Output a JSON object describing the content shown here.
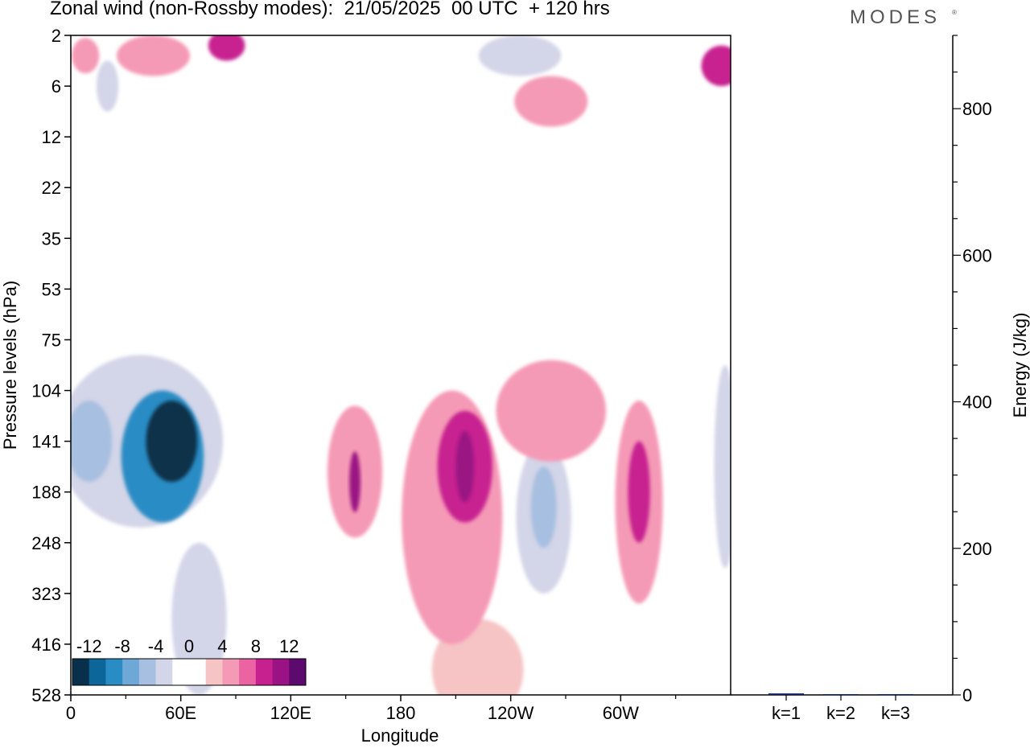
{
  "title": "Zonal wind (non-Rossby modes):  21/05/2025  00 UTC  + 120 hrs",
  "brand": "MODES",
  "brand_mark": "®",
  "chart_data": [
    {
      "type": "heatmap",
      "title": "Zonal wind (non-Rossby modes):  21/05/2025  00 UTC  + 120 hrs",
      "xlabel": "Longitude",
      "ylabel": "Pressure levels (hPa)",
      "x_ticks": [
        "0",
        "60E",
        "120E",
        "180",
        "120W",
        "60W"
      ],
      "x_tick_deg": [
        0,
        60,
        120,
        180,
        240,
        300
      ],
      "xlim": [
        0,
        360
      ],
      "y_ticks": [
        "2",
        "6",
        "12",
        "22",
        "35",
        "53",
        "75",
        "104",
        "141",
        "188",
        "248",
        "323",
        "416",
        "528"
      ],
      "colorbar": {
        "labels": [
          "-12",
          "-8",
          "-4",
          "0",
          "4",
          "8",
          "12"
        ],
        "colors": [
          "#08304a",
          "#0d6699",
          "#2a8cc4",
          "#6ea8d6",
          "#a7bfe0",
          "#d3d5e8",
          "#ffffff",
          "#ffffff",
          "#f6c4c5",
          "#f59ab6",
          "#ec63a3",
          "#c72190",
          "#9a1283",
          "#5c0a6e"
        ]
      },
      "cells": [
        {
          "lon": 55,
          "level_index": 8.0,
          "value": -14,
          "w": 28,
          "h": 1.6
        },
        {
          "lon": 50,
          "level_index": 8.3,
          "value": -10,
          "w": 45,
          "h": 2.6
        },
        {
          "lon": 10,
          "level_index": 8.0,
          "value": -6,
          "w": 25,
          "h": 1.6
        },
        {
          "lon": 38,
          "level_index": 8.0,
          "value": -4,
          "w": 90,
          "h": 3.4
        },
        {
          "lon": 70,
          "level_index": 11.5,
          "value": -4,
          "w": 30,
          "h": 3.0
        },
        {
          "lon": 258,
          "level_index": 9.3,
          "value": -6,
          "w": 14,
          "h": 1.6
        },
        {
          "lon": 258,
          "level_index": 9.5,
          "value": -3,
          "w": 30,
          "h": 3.0
        },
        {
          "lon": 357,
          "level_index": 8.5,
          "value": -3,
          "w": 12,
          "h": 4.0
        },
        {
          "lon": 245,
          "level_index": 0.4,
          "value": -4,
          "w": 45,
          "h": 0.8
        },
        {
          "lon": 20,
          "level_index": 1.0,
          "value": -3,
          "w": 12,
          "h": 1.0
        },
        {
          "lon": 155,
          "level_index": 8.6,
          "value": 5,
          "w": 30,
          "h": 2.6
        },
        {
          "lon": 155,
          "level_index": 8.8,
          "value": 10,
          "w": 6,
          "h": 1.2
        },
        {
          "lon": 215,
          "level_index": 8.5,
          "value": 8,
          "w": 30,
          "h": 2.2
        },
        {
          "lon": 215,
          "level_index": 8.5,
          "value": 10,
          "w": 10,
          "h": 1.4
        },
        {
          "lon": 208,
          "level_index": 9.5,
          "value": 5,
          "w": 55,
          "h": 5.0
        },
        {
          "lon": 310,
          "level_index": 9.0,
          "value": 8,
          "w": 12,
          "h": 2.0
        },
        {
          "lon": 310,
          "level_index": 9.2,
          "value": 4,
          "w": 26,
          "h": 4.0
        },
        {
          "lon": 262,
          "level_index": 7.4,
          "value": 4,
          "w": 60,
          "h": 2.0
        },
        {
          "lon": 222,
          "level_index": 12.5,
          "value": 3,
          "w": 50,
          "h": 2.0
        },
        {
          "lon": 262,
          "level_index": 1.3,
          "value": 4,
          "w": 40,
          "h": 1.0
        },
        {
          "lon": 355,
          "level_index": 0.6,
          "value": 8,
          "w": 22,
          "h": 0.8
        },
        {
          "lon": 85,
          "level_index": 0.2,
          "value": 8,
          "w": 20,
          "h": 0.6
        },
        {
          "lon": 45,
          "level_index": 0.4,
          "value": 4,
          "w": 40,
          "h": 0.8
        },
        {
          "lon": 8,
          "level_index": 0.4,
          "value": 4,
          "w": 15,
          "h": 0.7
        }
      ]
    },
    {
      "type": "bar",
      "ylabel": "Energy (J/kg)",
      "categories": [
        "k=1",
        "k=2",
        "k=3"
      ],
      "values": [
        2,
        1,
        1
      ],
      "ylim": [
        0,
        900
      ],
      "y_ticks": [
        0,
        200,
        400,
        600,
        800
      ]
    }
  ]
}
